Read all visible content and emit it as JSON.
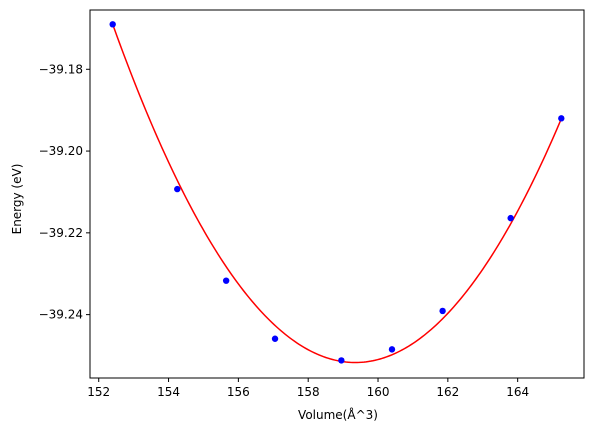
{
  "chart_data": {
    "type": "scatter",
    "title": "",
    "xlabel": "Volume(Å^3)",
    "ylabel": "Energy (eV)",
    "xlim": [
      151.75,
      165.9
    ],
    "ylim": [
      -39.2555,
      -39.1655
    ],
    "xticks": [
      152,
      154,
      156,
      158,
      160,
      162,
      164
    ],
    "yticks": [
      -39.18,
      -39.2,
      -39.22,
      -39.24
    ],
    "ytick_labels": [
      "−39.18",
      "−39.20",
      "−39.22",
      "−39.24"
    ],
    "grid": false,
    "legend": "none",
    "series": [
      {
        "kind": "scatter",
        "color": "#0000ff",
        "x": [
          152.4,
          154.25,
          155.65,
          157.05,
          158.95,
          160.4,
          161.85,
          163.8,
          165.25
        ],
        "y": [
          -39.169,
          -39.2093,
          -39.2317,
          -39.2459,
          -39.2512,
          -39.2485,
          -39.2391,
          -39.2164,
          -39.192
        ]
      },
      {
        "kind": "line",
        "color": "#ff0000",
        "fit": {
          "type": "quadratic",
          "x_range": [
            152.4,
            165.25
          ],
          "points": [
            [
              152.4,
              -39.169
            ],
            [
              159.0,
              -39.2515
            ],
            [
              165.25,
              -39.1921
            ]
          ]
        }
      }
    ]
  }
}
